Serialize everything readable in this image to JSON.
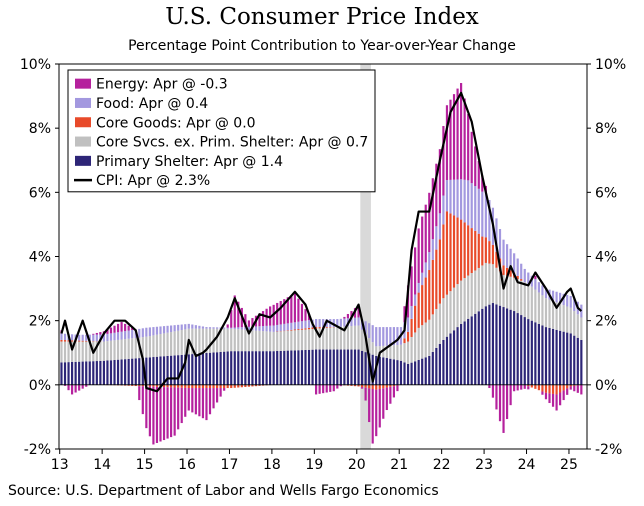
{
  "title": "U.S. Consumer Price Index",
  "subtitle": "Percentage Point Contribution to Year-over-Year Change",
  "source": "Source: U.S. Department of Labor and Wells Fargo Economics",
  "colors": {
    "energy": "#b5219d",
    "food": "#a398df",
    "core_goods": "#e84a2a",
    "core_services": "#c0c0c0",
    "primary_shelter": "#2d2577",
    "cpi": "#000000",
    "recession": "#d9d9d9"
  },
  "chart_data": {
    "type": "bar",
    "stacked": true,
    "frequency": "monthly",
    "x_start": "2013-01",
    "x_end": "2025-04",
    "x_tick_labels": [
      "13",
      "14",
      "15",
      "16",
      "17",
      "18",
      "19",
      "20",
      "21",
      "22",
      "23",
      "24",
      "25"
    ],
    "ylim": [
      -2,
      10
    ],
    "y_ticks": [
      -2,
      0,
      2,
      4,
      6,
      8,
      10
    ],
    "y_tick_labels": [
      "-2%",
      "0%",
      "2%",
      "4%",
      "6%",
      "8%",
      "10%"
    ],
    "legend_position": "top-left",
    "recession_shading": {
      "start": "2020-02",
      "end": "2020-04"
    },
    "series": [
      {
        "name": "Energy: Apr @ -0.3",
        "key": "energy"
      },
      {
        "name": "Food: Apr @ 0.4",
        "key": "food"
      },
      {
        "name": "Core Goods: Apr @ 0.0",
        "key": "core_goods"
      },
      {
        "name": "Core Svcs. ex. Prim. Shelter: Apr @ 0.7",
        "key": "core_services"
      },
      {
        "name": "Primary Shelter: Apr @ 1.4",
        "key": "primary_shelter"
      },
      {
        "name": "CPI: Apr @ 2.3%",
        "key": "cpi",
        "type": "line"
      }
    ],
    "anchors": {
      "primary_shelter": [
        [
          "2013-01",
          0.7
        ],
        [
          "2014-01",
          0.75
        ],
        [
          "2015-01",
          0.85
        ],
        [
          "2016-01",
          0.95
        ],
        [
          "2017-01",
          1.05
        ],
        [
          "2018-01",
          1.05
        ],
        [
          "2019-01",
          1.1
        ],
        [
          "2020-01",
          1.1
        ],
        [
          "2020-06",
          0.9
        ],
        [
          "2021-01",
          0.75
        ],
        [
          "2021-03",
          0.65
        ],
        [
          "2021-09",
          0.9
        ],
        [
          "2022-01",
          1.4
        ],
        [
          "2022-06",
          1.9
        ],
        [
          "2023-01",
          2.45
        ],
        [
          "2023-03",
          2.55
        ],
        [
          "2023-09",
          2.3
        ],
        [
          "2024-01",
          2.05
        ],
        [
          "2024-06",
          1.8
        ],
        [
          "2025-01",
          1.6
        ],
        [
          "2025-04",
          1.4
        ]
      ],
      "core_services": [
        [
          "2013-01",
          0.65
        ],
        [
          "2014-01",
          0.6
        ],
        [
          "2015-01",
          0.65
        ],
        [
          "2016-01",
          0.8
        ],
        [
          "2017-01",
          0.7
        ],
        [
          "2018-01",
          0.6
        ],
        [
          "2019-01",
          0.65
        ],
        [
          "2020-01",
          0.75
        ],
        [
          "2020-06",
          0.3
        ],
        [
          "2021-01",
          0.5
        ],
        [
          "2021-06",
          1.0
        ],
        [
          "2022-01",
          1.3
        ],
        [
          "2022-06",
          1.35
        ],
        [
          "2023-01",
          1.35
        ],
        [
          "2023-06",
          1.0
        ],
        [
          "2024-01",
          1.1
        ],
        [
          "2024-06",
          0.9
        ],
        [
          "2025-01",
          0.8
        ],
        [
          "2025-04",
          0.7
        ]
      ],
      "core_goods": [
        [
          "2013-01",
          0.05
        ],
        [
          "2014-01",
          0.0
        ],
        [
          "2015-01",
          -0.05
        ],
        [
          "2016-01",
          -0.1
        ],
        [
          "2017-01",
          -0.1
        ],
        [
          "2018-01",
          0.0
        ],
        [
          "2019-01",
          0.05
        ],
        [
          "2020-01",
          -0.05
        ],
        [
          "2020-06",
          -0.15
        ],
        [
          "2021-01",
          0.0
        ],
        [
          "2021-03",
          0.3
        ],
        [
          "2021-06",
          1.1
        ],
        [
          "2021-12",
          2.0
        ],
        [
          "2022-02",
          2.6
        ],
        [
          "2022-06",
          1.9
        ],
        [
          "2022-12",
          0.9
        ],
        [
          "2023-06",
          0.3
        ],
        [
          "2023-12",
          0.0
        ],
        [
          "2024-06",
          -0.25
        ],
        [
          "2024-09",
          -0.3
        ],
        [
          "2025-01",
          -0.05
        ],
        [
          "2025-04",
          0.0
        ]
      ],
      "food": [
        [
          "2013-01",
          0.2
        ],
        [
          "2013-06",
          0.18
        ],
        [
          "2014-01",
          0.22
        ],
        [
          "2015-01",
          0.28
        ],
        [
          "2016-01",
          0.15
        ],
        [
          "2016-06",
          0.05
        ],
        [
          "2017-01",
          0.03
        ],
        [
          "2017-06",
          0.1
        ],
        [
          "2018-01",
          0.2
        ],
        [
          "2019-01",
          0.25
        ],
        [
          "2020-01",
          0.25
        ],
        [
          "2020-06",
          0.6
        ],
        [
          "2021-01",
          0.55
        ],
        [
          "2021-06",
          0.3
        ],
        [
          "2022-01",
          0.9
        ],
        [
          "2022-08",
          1.4
        ],
        [
          "2023-01",
          1.4
        ],
        [
          "2023-06",
          0.8
        ],
        [
          "2024-01",
          0.35
        ],
        [
          "2024-06",
          0.3
        ],
        [
          "2025-04",
          0.4
        ]
      ],
      "energy": [
        [
          "2013-01",
          0.1
        ],
        [
          "2013-04",
          -0.3
        ],
        [
          "2013-09",
          0.0
        ],
        [
          "2014-01",
          0.1
        ],
        [
          "2014-06",
          0.3
        ],
        [
          "2014-10",
          0.0
        ],
        [
          "2015-01",
          -1.3
        ],
        [
          "2015-03",
          -1.8
        ],
        [
          "2015-09",
          -1.5
        ],
        [
          "2016-01",
          -0.7
        ],
        [
          "2016-06",
          -1.0
        ],
        [
          "2016-12",
          0.1
        ],
        [
          "2017-02",
          1.0
        ],
        [
          "2017-06",
          0.2
        ],
        [
          "2017-12",
          0.6
        ],
        [
          "2018-07",
          0.9
        ],
        [
          "2018-12",
          0.0
        ],
        [
          "2019-01",
          -0.3
        ],
        [
          "2019-06",
          -0.2
        ],
        [
          "2019-12",
          0.3
        ],
        [
          "2020-01",
          0.3
        ],
        [
          "2020-03",
          -0.4
        ],
        [
          "2020-05",
          -1.7
        ],
        [
          "2020-09",
          -0.7
        ],
        [
          "2021-01",
          0.0
        ],
        [
          "2021-03",
          1.0
        ],
        [
          "2021-06",
          1.7
        ],
        [
          "2021-12",
          2.0
        ],
        [
          "2022-03",
          2.5
        ],
        [
          "2022-06",
          3.0
        ],
        [
          "2022-09",
          1.6
        ],
        [
          "2022-12",
          0.5
        ],
        [
          "2023-03",
          -0.4
        ],
        [
          "2023-06",
          -1.5
        ],
        [
          "2023-09",
          -0.2
        ],
        [
          "2024-01",
          -0.1
        ],
        [
          "2024-03",
          0.1
        ],
        [
          "2024-06",
          -0.2
        ],
        [
          "2024-09",
          -0.5
        ],
        [
          "2025-01",
          -0.1
        ],
        [
          "2025-04",
          -0.3
        ]
      ],
      "cpi": [
        [
          "2013-01",
          1.6
        ],
        [
          "2013-02",
          2.0
        ],
        [
          "2013-04",
          1.1
        ],
        [
          "2013-07",
          2.0
        ],
        [
          "2013-10",
          1.0
        ],
        [
          "2014-01",
          1.6
        ],
        [
          "2014-04",
          2.0
        ],
        [
          "2014-07",
          2.0
        ],
        [
          "2014-10",
          1.7
        ],
        [
          "2014-12",
          0.8
        ],
        [
          "2015-01",
          -0.1
        ],
        [
          "2015-04",
          -0.2
        ],
        [
          "2015-07",
          0.2
        ],
        [
          "2015-10",
          0.2
        ],
        [
          "2015-12",
          0.7
        ],
        [
          "2016-01",
          1.4
        ],
        [
          "2016-03",
          0.9
        ],
        [
          "2016-05",
          1.0
        ],
        [
          "2016-06",
          1.1
        ],
        [
          "2016-09",
          1.5
        ],
        [
          "2016-12",
          2.1
        ],
        [
          "2017-02",
          2.7
        ],
        [
          "2017-06",
          1.6
        ],
        [
          "2017-09",
          2.2
        ],
        [
          "2017-12",
          2.1
        ],
        [
          "2018-03",
          2.4
        ],
        [
          "2018-07",
          2.9
        ],
        [
          "2018-10",
          2.5
        ],
        [
          "2018-12",
          1.9
        ],
        [
          "2019-02",
          1.5
        ],
        [
          "2019-04",
          2.0
        ],
        [
          "2019-09",
          1.7
        ],
        [
          "2019-12",
          2.3
        ],
        [
          "2020-01",
          2.5
        ],
        [
          "2020-03",
          1.5
        ],
        [
          "2020-05",
          0.1
        ],
        [
          "2020-07",
          1.0
        ],
        [
          "2020-12",
          1.4
        ],
        [
          "2021-02",
          1.7
        ],
        [
          "2021-04",
          4.2
        ],
        [
          "2021-06",
          5.4
        ],
        [
          "2021-09",
          5.4
        ],
        [
          "2021-12",
          7.0
        ],
        [
          "2022-03",
          8.5
        ],
        [
          "2022-06",
          9.1
        ],
        [
          "2022-09",
          8.2
        ],
        [
          "2022-12",
          6.5
        ],
        [
          "2023-03",
          5.0
        ],
        [
          "2023-06",
          3.0
        ],
        [
          "2023-08",
          3.7
        ],
        [
          "2023-10",
          3.2
        ],
        [
          "2024-01",
          3.1
        ],
        [
          "2024-03",
          3.5
        ],
        [
          "2024-06",
          3.0
        ],
        [
          "2024-09",
          2.4
        ],
        [
          "2024-12",
          2.9
        ],
        [
          "2025-01",
          3.0
        ],
        [
          "2025-03",
          2.4
        ],
        [
          "2025-04",
          2.3
        ]
      ]
    }
  }
}
